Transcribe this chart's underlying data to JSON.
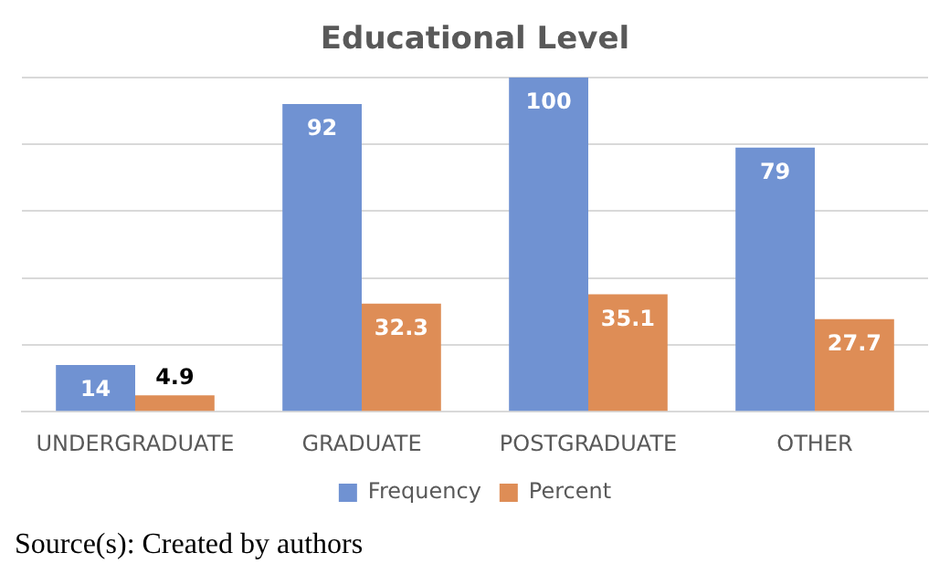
{
  "chart_data": {
    "type": "bar",
    "title": "Educational Level",
    "categories": [
      "UNDERGRADUATE",
      "GRADUATE",
      "POSTGRADUATE",
      "OTHER"
    ],
    "series": [
      {
        "name": "Frequency",
        "color": "#7092d2",
        "values": [
          14,
          92,
          100,
          79
        ]
      },
      {
        "name": "Percent",
        "color": "#de8d56",
        "values": [
          4.9,
          32.3,
          35.1,
          27.7
        ]
      }
    ],
    "ylim": [
      0,
      100
    ],
    "yticks": [
      {
        "value": 0,
        "label": null
      },
      {
        "value": 20,
        "label": null
      },
      {
        "value": 40,
        "label": null
      },
      {
        "value": 60,
        "label": null
      },
      {
        "value": 80,
        "label": null
      },
      {
        "value": 100,
        "label": null
      }
    ],
    "tick_labels": "x",
    "grid": "y",
    "legend": "bottom",
    "data_labels": true,
    "annotations": [
      "Source(s): Created by authors"
    ]
  }
}
